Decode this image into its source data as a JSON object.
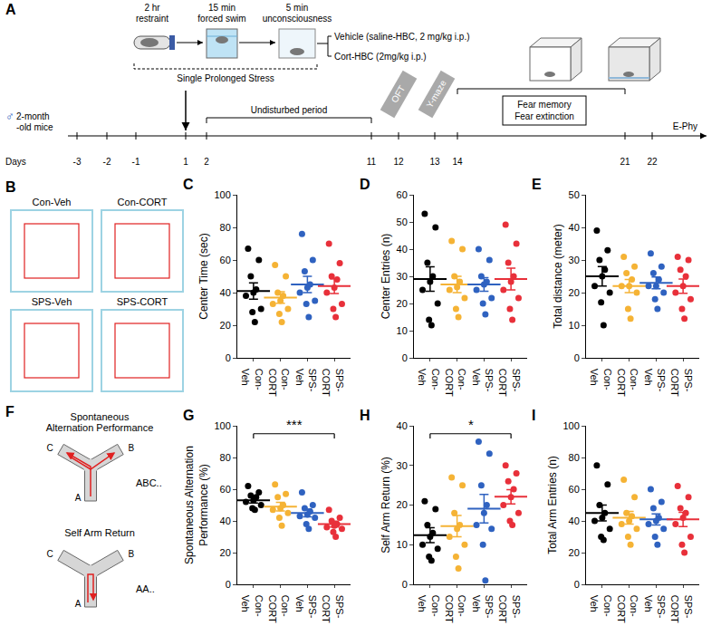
{
  "panel_A": {
    "letter": "A",
    "sex_symbol": "♂",
    "subject": "2-month -old mice",
    "steps": [
      {
        "duration": "2 hr",
        "label": "restraint"
      },
      {
        "duration": "15 min",
        "label": "forced swim"
      },
      {
        "duration": "5 min",
        "label": "unconsciousness"
      }
    ],
    "procedure": "Single Prolonged Stress",
    "treatments": [
      "Vehicle (saline-HBC, 2 mg/kg i.p.)",
      "Cort-HBC (2mg/kg i.p.)"
    ],
    "period": "Undisturbed period",
    "tests": [
      "OFT",
      "Y-maze"
    ],
    "fear": [
      "Fear memory",
      "Fear extinction"
    ],
    "ephy": "E-Phy",
    "days_label": "Days",
    "days": [
      -3,
      -2,
      -1,
      1,
      2,
      11,
      12,
      13,
      14,
      21,
      22
    ]
  },
  "panel_B": {
    "letter": "B",
    "groups": [
      "Con-Veh",
      "Con-CORT",
      "SPS-Veh",
      "SPS-CORT"
    ]
  },
  "panel_F": {
    "letter": "F",
    "arms": [
      "A",
      "B",
      "C"
    ],
    "tests": [
      {
        "title": "Spontaneous Alternation Performance",
        "sequence": "ABC.."
      },
      {
        "title": "Self Arm Return",
        "sequence": "AA.."
      }
    ]
  },
  "chart_data": [
    {
      "panel": "C",
      "type": "scatter",
      "y_label": "Center Time (sec)",
      "categories": [
        "Con-Veh",
        "Con-CORT",
        "SPS-Veh",
        "SPS-CORT"
      ],
      "colors": [
        "#000000",
        "#f5b335",
        "#2f62c0",
        "#e8303a"
      ],
      "ylim": [
        0,
        100
      ],
      "yticks": [
        0,
        20,
        40,
        60,
        80,
        100
      ],
      "grid": false,
      "points": [
        [
          67,
          60,
          50,
          42,
          40,
          38,
          30,
          28,
          22
        ],
        [
          57,
          50,
          40,
          38,
          35,
          33,
          30,
          27,
          22
        ],
        [
          76,
          60,
          53,
          45,
          43,
          40,
          35,
          33,
          25
        ],
        [
          70,
          58,
          50,
          48,
          43,
          40,
          33,
          30,
          25
        ]
      ],
      "means": [
        41,
        37,
        45,
        44
      ],
      "sems": [
        5,
        3.5,
        5,
        4.5
      ]
    },
    {
      "panel": "D",
      "type": "scatter",
      "y_label": "Center Entries (n)",
      "categories": [
        "Con-Veh",
        "Con-CORT",
        "SPS-Veh",
        "SPS-CORT"
      ],
      "colors": [
        "#000000",
        "#f5b335",
        "#2f62c0",
        "#e8303a"
      ],
      "ylim": [
        0,
        60
      ],
      "yticks": [
        0,
        10,
        20,
        30,
        40,
        50,
        60
      ],
      "grid": false,
      "points": [
        [
          53,
          48,
          35,
          30,
          28,
          25,
          20,
          14,
          12
        ],
        [
          43,
          40,
          30,
          28,
          26,
          25,
          22,
          18,
          15
        ],
        [
          40,
          36,
          30,
          28,
          27,
          25,
          22,
          20,
          16
        ],
        [
          49,
          42,
          35,
          30,
          28,
          25,
          22,
          18,
          14
        ]
      ],
      "means": [
        29,
        27,
        27,
        29
      ],
      "sems": [
        4.5,
        3,
        2.5,
        4
      ]
    },
    {
      "panel": "E",
      "type": "scatter",
      "y_label": "Total distance (meter)",
      "categories": [
        "Con-Veh",
        "Con-CORT",
        "SPS-Veh",
        "SPS-CORT"
      ],
      "colors": [
        "#000000",
        "#f5b335",
        "#2f62c0",
        "#e8303a"
      ],
      "ylim": [
        0,
        50
      ],
      "yticks": [
        0,
        10,
        20,
        30,
        40,
        50
      ],
      "grid": false,
      "points": [
        [
          39,
          33,
          30,
          27,
          25,
          22,
          20,
          17,
          10
        ],
        [
          31,
          28,
          26,
          24,
          22,
          22,
          20,
          15,
          12
        ],
        [
          32,
          28,
          26,
          24,
          22,
          22,
          20,
          18,
          15
        ],
        [
          31,
          30,
          27,
          25,
          22,
          20,
          18,
          15,
          12
        ]
      ],
      "means": [
        25,
        22,
        23,
        22
      ],
      "sems": [
        3,
        2,
        1.8,
        2.2
      ]
    },
    {
      "panel": "G",
      "type": "scatter",
      "y_label": "Spontaneous Alternation Performance (%)",
      "categories": [
        "Con-Veh",
        "Con-CORT",
        "SPS-Veh",
        "SPS-CORT"
      ],
      "colors": [
        "#000000",
        "#f5b335",
        "#2f62c0",
        "#e8303a"
      ],
      "ylim": [
        0,
        100
      ],
      "yticks": [
        0,
        20,
        40,
        60,
        80,
        100
      ],
      "grid": false,
      "points": [
        [
          62,
          58,
          56,
          55,
          53,
          52,
          50,
          48,
          47
        ],
        [
          63,
          57,
          55,
          50,
          48,
          47,
          45,
          42,
          37
        ],
        [
          58,
          50,
          48,
          46,
          44,
          43,
          42,
          38,
          35
        ],
        [
          47,
          42,
          40,
          38,
          37,
          36,
          35,
          33,
          30
        ]
      ],
      "means": [
        53,
        49,
        45,
        38
      ],
      "sems": [
        1.7,
        2.7,
        2.4,
        1.8
      ],
      "significance": {
        "pair": [
          "Con-Veh",
          "SPS-CORT"
        ],
        "label": "***"
      }
    },
    {
      "panel": "H",
      "type": "scatter",
      "y_label": "Self Arm Return (%)",
      "categories": [
        "Con-Veh",
        "Con-CORT",
        "SPS-Veh",
        "SPS-CORT"
      ],
      "colors": [
        "#000000",
        "#f5b335",
        "#2f62c0",
        "#e8303a"
      ],
      "ylim": [
        0,
        40
      ],
      "yticks": [
        0,
        10,
        20,
        30,
        40
      ],
      "grid": false,
      "points": [
        [
          21,
          19,
          15,
          13,
          12,
          10,
          9,
          7,
          6
        ],
        [
          27,
          25,
          18,
          15,
          14,
          12,
          10,
          7,
          4
        ],
        [
          36,
          33,
          25,
          20,
          18,
          15,
          14,
          10,
          1
        ],
        [
          30,
          28,
          26,
          24,
          22,
          20,
          18,
          16,
          15
        ]
      ],
      "means": [
        12.4,
        14.7,
        19.1,
        22.1
      ],
      "sems": [
        1.9,
        2.7,
        3.6,
        1.8
      ],
      "significance": {
        "pair": [
          "Con-Veh",
          "SPS-CORT"
        ],
        "label": "*"
      }
    },
    {
      "panel": "I",
      "type": "scatter",
      "y_label": "Total Arm Entries (n)",
      "categories": [
        "Con-Veh",
        "Con-CORT",
        "SPS-Veh",
        "SPS-CORT"
      ],
      "colors": [
        "#000000",
        "#f5b335",
        "#2f62c0",
        "#e8303a"
      ],
      "ylim": [
        0,
        100
      ],
      "yticks": [
        0,
        20,
        40,
        60,
        80,
        100
      ],
      "grid": false,
      "points": [
        [
          75,
          63,
          50,
          45,
          42,
          40,
          35,
          30,
          28
        ],
        [
          66,
          55,
          45,
          43,
          40,
          38,
          35,
          30,
          25
        ],
        [
          60,
          52,
          48,
          42,
          40,
          38,
          35,
          30,
          25
        ],
        [
          62,
          55,
          48,
          45,
          42,
          38,
          30,
          25,
          20
        ]
      ],
      "means": [
        45,
        42,
        41,
        41
      ],
      "sems": [
        5,
        4,
        3.5,
        4.5
      ]
    }
  ]
}
